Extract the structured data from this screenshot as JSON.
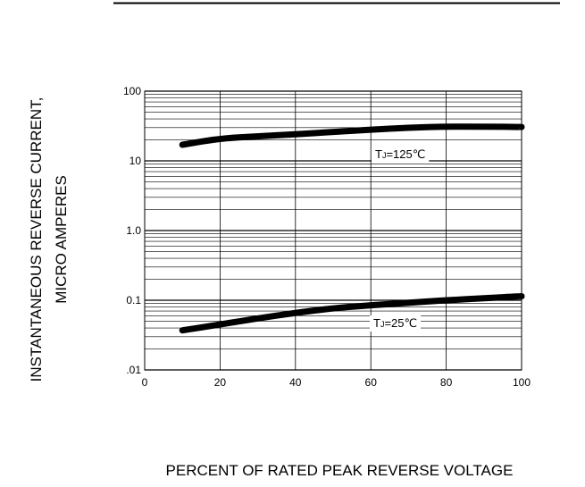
{
  "chart_data": {
    "type": "line",
    "title": "",
    "xlabel": "PERCENT OF RATED PEAK REVERSE VOLTAGE",
    "ylabel_lines": [
      "INSTANTANEOUS REVERSE CURRENT,",
      "MICRO AMPERES"
    ],
    "x_ticks": [
      "0",
      "20",
      "40",
      "60",
      "80",
      "100"
    ],
    "x_tick_values": [
      0,
      20,
      40,
      60,
      80,
      100
    ],
    "y_ticks": [
      "100",
      "10",
      "1.0",
      "0.1",
      ".01"
    ],
    "y_tick_values": [
      100,
      10,
      1,
      0.1,
      0.01
    ],
    "xlim": [
      0,
      100
    ],
    "ylim": [
      0.01,
      100
    ],
    "y_scale": "log",
    "grid": true,
    "series": [
      {
        "annotation_prefix": "T",
        "annotation_sub": "J",
        "annotation_suffix": "=125℃",
        "x": [
          10,
          20,
          30,
          40,
          50,
          60,
          70,
          80,
          90,
          100
        ],
        "values": [
          17,
          21,
          22.5,
          24,
          26,
          28,
          30,
          31,
          31,
          30.5
        ]
      },
      {
        "annotation_prefix": "T",
        "annotation_sub": "J",
        "annotation_suffix": "=25℃",
        "x": [
          10,
          20,
          30,
          40,
          50,
          60,
          70,
          80,
          90,
          100
        ],
        "values": [
          0.037,
          0.045,
          0.055,
          0.066,
          0.077,
          0.085,
          0.092,
          0.1,
          0.107,
          0.114
        ]
      }
    ],
    "line_color": "#000000"
  }
}
